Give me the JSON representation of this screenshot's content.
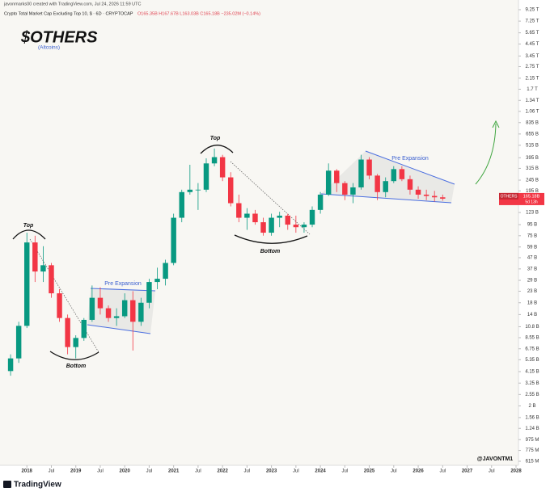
{
  "header": {
    "credit": "javonmarks00 created with TradingView.com, Jul 24, 2026 11:59 UTC",
    "symbol": "Crypto Total Market Cap Excluding Top 10, $ · 6D · CRYPTOCAP",
    "ohlc_text": "O165.35B H167.67B L163.03B C165.18B −235.02M (−0.14%)"
  },
  "chart_data": {
    "type": "candlestick",
    "log_scale": true,
    "grid": false,
    "up_color": "#089981",
    "down_color": "#f23645",
    "xlim": [
      "2017-07",
      "2028-01"
    ],
    "xticks": [
      {
        "value": "2018-01",
        "label": "2018"
      },
      {
        "value": "2018-07",
        "label": "Jul"
      },
      {
        "value": "2019-01",
        "label": "2019"
      },
      {
        "value": "2019-07",
        "label": "Jul"
      },
      {
        "value": "2020-01",
        "label": "2020"
      },
      {
        "value": "2020-07",
        "label": "Jul"
      },
      {
        "value": "2021-01",
        "label": "2021"
      },
      {
        "value": "2021-07",
        "label": "Jul"
      },
      {
        "value": "2022-01",
        "label": "2022"
      },
      {
        "value": "2022-07",
        "label": "Jul"
      },
      {
        "value": "2023-01",
        "label": "2023"
      },
      {
        "value": "2023-07",
        "label": "Jul"
      },
      {
        "value": "2024-01",
        "label": "2024"
      },
      {
        "value": "2024-07",
        "label": "Jul"
      },
      {
        "value": "2025-01",
        "label": "2025"
      },
      {
        "value": "2025-07",
        "label": "Jul"
      },
      {
        "value": "2026-01",
        "label": "2026"
      },
      {
        "value": "2026-07",
        "label": "Jul"
      },
      {
        "value": "2027-01",
        "label": "2027"
      },
      {
        "value": "2027-07",
        "label": "Jul"
      },
      {
        "value": "2028-01",
        "label": "2028"
      }
    ],
    "ylim": [
      0.574,
      10430
    ],
    "yticks": [
      {
        "value": 9250,
        "label": "9.25 T"
      },
      {
        "value": 7250,
        "label": "7.25 T"
      },
      {
        "value": 5650,
        "label": "5.65 T"
      },
      {
        "value": 4450,
        "label": "4.45 T"
      },
      {
        "value": 3450,
        "label": "3.45 T"
      },
      {
        "value": 2750,
        "label": "2.75 T"
      },
      {
        "value": 2150,
        "label": "2.15 T"
      },
      {
        "value": 1700,
        "label": "1.7 T"
      },
      {
        "value": 1340,
        "label": "1.34 T"
      },
      {
        "value": 1060,
        "label": "1.06 T"
      },
      {
        "value": 835,
        "label": "835 B"
      },
      {
        "value": 655,
        "label": "655 B"
      },
      {
        "value": 515,
        "label": "515 B"
      },
      {
        "value": 395,
        "label": "395 B"
      },
      {
        "value": 315,
        "label": "315 B"
      },
      {
        "value": 245,
        "label": "245 B"
      },
      {
        "value": 195,
        "label": "195 B"
      },
      {
        "value": 123,
        "label": "123 B"
      },
      {
        "value": 95,
        "label": "95 B"
      },
      {
        "value": 75,
        "label": "75 B"
      },
      {
        "value": 59,
        "label": "59 B"
      },
      {
        "value": 47,
        "label": "47 B"
      },
      {
        "value": 37,
        "label": "37 B"
      },
      {
        "value": 29,
        "label": "29 B"
      },
      {
        "value": 23,
        "label": "23 B"
      },
      {
        "value": 18,
        "label": "18 B"
      },
      {
        "value": 14,
        "label": "14 B"
      },
      {
        "value": 10.8,
        "label": "10.8 B"
      },
      {
        "value": 8.55,
        "label": "8.55 B"
      },
      {
        "value": 6.75,
        "label": "6.75 B"
      },
      {
        "value": 5.35,
        "label": "5.35 B"
      },
      {
        "value": 4.15,
        "label": "4.15 B"
      },
      {
        "value": 3.25,
        "label": "3.25 B"
      },
      {
        "value": 2.55,
        "label": "2.55 B"
      },
      {
        "value": 2,
        "label": "2 B"
      },
      {
        "value": 1.56,
        "label": "1.56 B"
      },
      {
        "value": 1.24,
        "label": "1.24 B"
      },
      {
        "value": 0.975,
        "label": "975 M"
      },
      {
        "value": 0.775,
        "label": "775 M"
      },
      {
        "value": 0.615,
        "label": "615 M"
      }
    ],
    "x": [
      "2017-08",
      "2017-10",
      "2017-12",
      "2018-02",
      "2018-04",
      "2018-06",
      "2018-08",
      "2018-10",
      "2018-12",
      "2019-02",
      "2019-04",
      "2019-06",
      "2019-08",
      "2019-10",
      "2019-12",
      "2020-02",
      "2020-04",
      "2020-06",
      "2020-08",
      "2020-10",
      "2020-12",
      "2021-02",
      "2021-04",
      "2021-06",
      "2021-08",
      "2021-10",
      "2021-12",
      "2022-02",
      "2022-04",
      "2022-06",
      "2022-08",
      "2022-10",
      "2022-12",
      "2023-02",
      "2023-04",
      "2023-06",
      "2023-08",
      "2023-10",
      "2023-12",
      "2024-02",
      "2024-04",
      "2024-06",
      "2024-08",
      "2024-10",
      "2024-12",
      "2025-02",
      "2025-04",
      "2025-06",
      "2025-08",
      "2025-10",
      "2025-12",
      "2026-02",
      "2026-04",
      "2026-06"
    ],
    "open": [
      4.2,
      5.5,
      11,
      65,
      35,
      40,
      22,
      13,
      7,
      8.5,
      12.5,
      20,
      16,
      13,
      13.5,
      19,
      12,
      18,
      28,
      30,
      42,
      110,
      190,
      200,
      200,
      350,
      400,
      260,
      150,
      110,
      120,
      100,
      80,
      110,
      115,
      95,
      90,
      95,
      130,
      180,
      300,
      230,
      180,
      210,
      380,
      270,
      190,
      240,
      310,
      250,
      200,
      180,
      175,
      170
    ],
    "high": [
      6,
      12,
      80,
      75,
      60,
      42,
      24,
      14,
      9,
      13,
      26,
      25,
      17,
      16,
      22,
      23,
      20,
      30,
      38,
      45,
      120,
      200,
      340,
      230,
      390,
      480,
      420,
      290,
      180,
      135,
      130,
      110,
      120,
      125,
      120,
      115,
      100,
      140,
      190,
      350,
      310,
      240,
      230,
      420,
      400,
      280,
      260,
      330,
      330,
      270,
      215,
      200,
      195,
      180
    ],
    "low": [
      3.8,
      5,
      10.5,
      28,
      28,
      20,
      12,
      6,
      5.5,
      8,
      12,
      14,
      12,
      11,
      13,
      6.5,
      11,
      16,
      24,
      26,
      40,
      100,
      180,
      130,
      190,
      330,
      240,
      140,
      100,
      85,
      95,
      75,
      75,
      90,
      85,
      80,
      80,
      90,
      120,
      175,
      190,
      160,
      150,
      200,
      250,
      160,
      170,
      230,
      240,
      180,
      165,
      160,
      155,
      158
    ],
    "close": [
      5.5,
      11,
      65,
      35,
      40,
      22,
      13,
      7,
      8.5,
      12.5,
      20,
      16,
      13,
      13.5,
      19,
      12,
      18,
      28,
      30,
      42,
      110,
      190,
      200,
      200,
      350,
      400,
      260,
      150,
      110,
      120,
      100,
      80,
      110,
      115,
      95,
      90,
      95,
      130,
      180,
      300,
      230,
      180,
      210,
      380,
      270,
      190,
      240,
      310,
      250,
      200,
      180,
      175,
      170,
      165.18
    ],
    "last_price_symbol": "OTHERS",
    "last_price_label": "165.18B",
    "countdown": "5d 13h"
  },
  "annotations": {
    "ticker": "$OTHERS",
    "subtitle": "(Altcoins)",
    "top_1": "Top",
    "bottom_1": "Bottom",
    "pre_expansion_1": "Pre Expansion",
    "top_2": "Top",
    "bottom_2": "Bottom",
    "pre_expansion_2": "Pre Expansion",
    "watermark": "@JAVONTM1"
  },
  "footer": {
    "brand": "TradingView"
  }
}
